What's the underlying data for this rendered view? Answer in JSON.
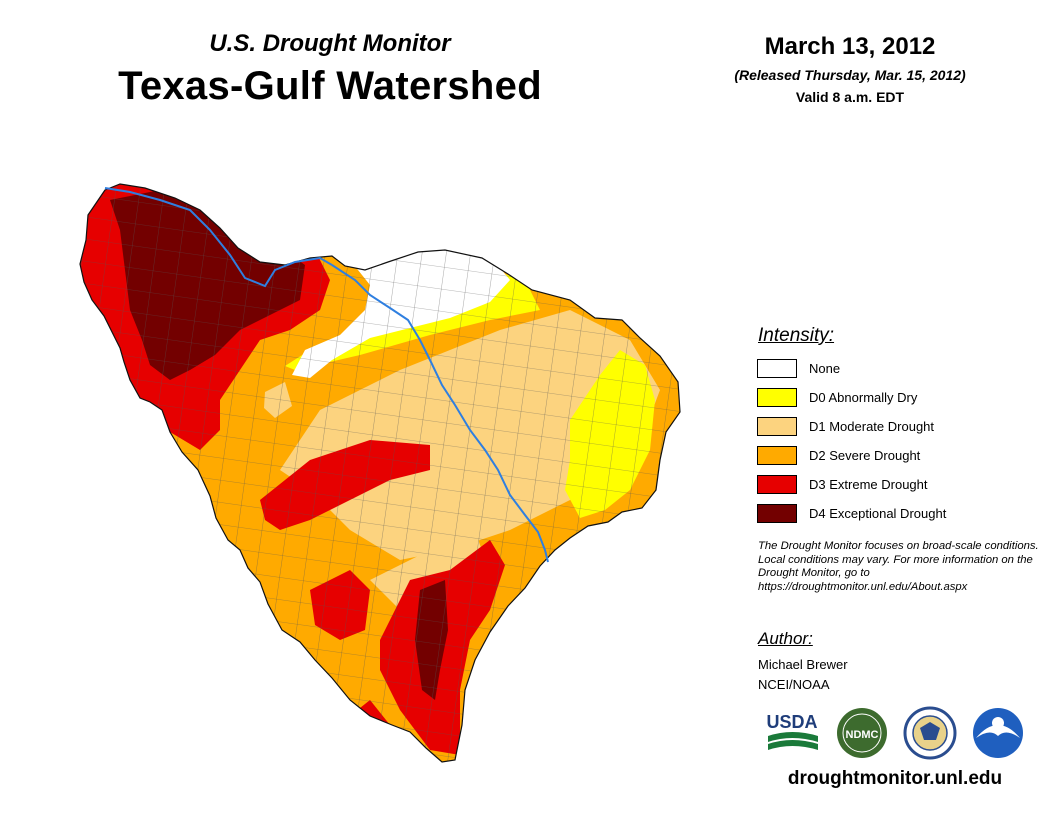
{
  "header": {
    "subtitle": "U.S. Drought Monitor",
    "title": "Texas-Gulf Watershed",
    "date": "March 13, 2012",
    "released": "(Released Thursday, Mar. 15, 2012)",
    "valid": "Valid 8 a.m. EDT"
  },
  "legend": {
    "heading": "Intensity:",
    "items": [
      {
        "label": "None",
        "color": "#ffffff"
      },
      {
        "label": "D0 Abnormally Dry",
        "color": "#ffff00"
      },
      {
        "label": "D1 Moderate Drought",
        "color": "#fcd37f"
      },
      {
        "label": "D2 Severe Drought",
        "color": "#ffaa00"
      },
      {
        "label": "D3 Extreme Drought",
        "color": "#e60000"
      },
      {
        "label": "D4 Exceptional Drought",
        "color": "#730000"
      }
    ]
  },
  "note": "The Drought Monitor focuses on broad-scale conditions. Local conditions may vary. For more information on the Drought Monitor, go to https://droughtmonitor.unl.edu/About.aspx",
  "author": {
    "heading": "Author:",
    "name": "Michael Brewer",
    "org": "NCEI/NOAA"
  },
  "logos": {
    "usda": "USDA",
    "ndmc": "NDMC"
  },
  "footer": {
    "website": "droughtmonitor.unl.edu"
  },
  "colors": {
    "river": "#2f7fe0",
    "county_lines": "#555555"
  }
}
